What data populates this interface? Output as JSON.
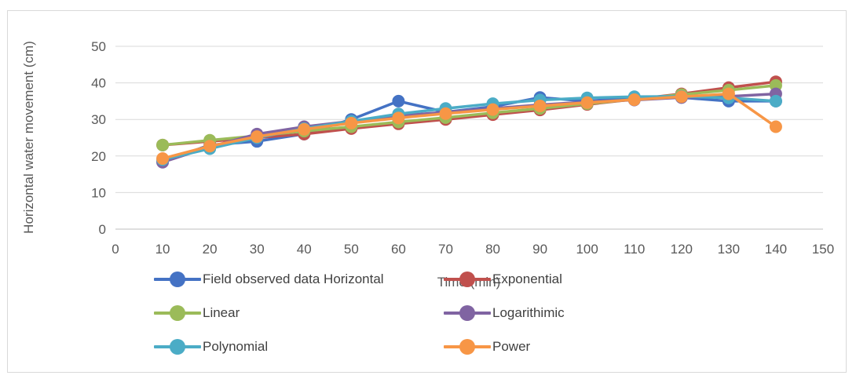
{
  "chart_data": {
    "type": "line",
    "xlabel": "Time (min)",
    "ylabel": "Horizontal water movement (cm)",
    "xlim": [
      0,
      150
    ],
    "ylim": [
      0,
      50
    ],
    "x_ticks": [
      "0",
      "10",
      "20",
      "30",
      "40",
      "50",
      "60",
      "70",
      "80",
      "90",
      "100",
      "110",
      "120",
      "130",
      "140",
      "150"
    ],
    "y_ticks": [
      "0",
      "10",
      "20",
      "30",
      "40",
      "50"
    ],
    "x": [
      10,
      20,
      30,
      40,
      50,
      60,
      70,
      80,
      90,
      100,
      110,
      120,
      130,
      140
    ],
    "grid": "horizontal",
    "legend_position": "bottom",
    "series": [
      {
        "name": "Field observed data Horizontal",
        "color": "#4472c4",
        "values": [
          18.5,
          23,
          24,
          26,
          30,
          35,
          32,
          33.5,
          36,
          35,
          36,
          36,
          35,
          35
        ]
      },
      {
        "name": "Exponential",
        "color": "#c0504d",
        "values": [
          23,
          24,
          25,
          26,
          27.5,
          28.8,
          30,
          31.3,
          32.6,
          34.1,
          35.5,
          37,
          38.7,
          40.3
        ]
      },
      {
        "name": "Linear",
        "color": "#9bbb59",
        "values": [
          23,
          24.3,
          25.5,
          26.8,
          28,
          29.3,
          30.5,
          31.8,
          33,
          34.3,
          35.5,
          36.8,
          38,
          39.3
        ]
      },
      {
        "name": "Logarithimic",
        "color": "#8064a2",
        "values": [
          18.3,
          22.5,
          26,
          28,
          29.5,
          31,
          32,
          33,
          34,
          34.8,
          35.3,
          36,
          36.3,
          37
        ]
      },
      {
        "name": "Polynomial",
        "color": "#4bacc6",
        "values": [
          19,
          22,
          25,
          27.5,
          29.5,
          31.5,
          33,
          34.3,
          35.3,
          35.9,
          36.2,
          36.3,
          35.9,
          35
        ]
      },
      {
        "name": "Power",
        "color": "#f79646",
        "values": [
          19.3,
          22.7,
          25.3,
          27.3,
          29,
          30.4,
          31.6,
          32.7,
          33.7,
          34.6,
          35.4,
          36.2,
          37,
          28
        ]
      }
    ]
  }
}
